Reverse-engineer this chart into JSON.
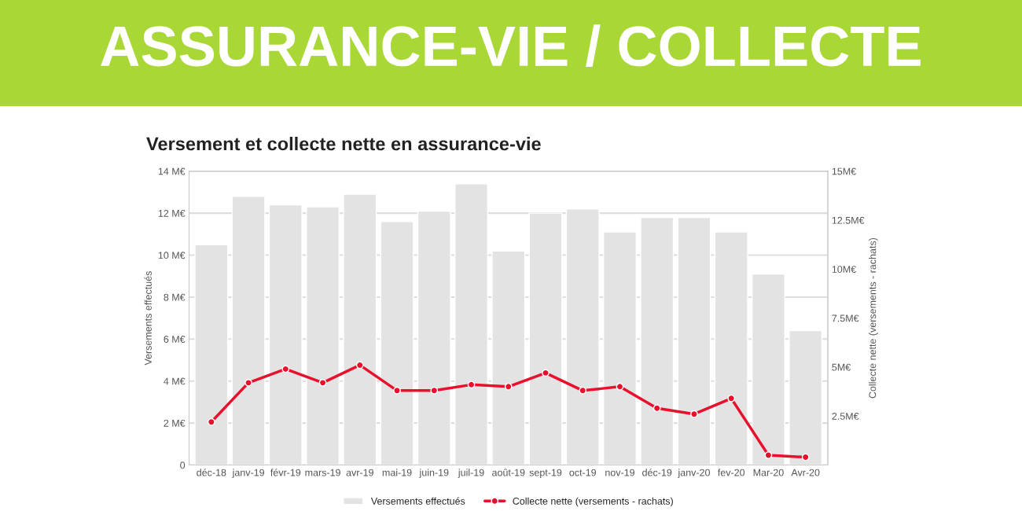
{
  "chart_data": {
    "type": "bar",
    "title": "ASSURANCE-VIE / COLLECTE",
    "subtitle": "Versement et collecte nette en assurance-vie",
    "ylabel": "Versements effectués",
    "y2label": "Collecte nette (versements - rachats)",
    "categories": [
      "déc-18",
      "janv-19",
      "févr-19",
      "mars-19",
      "avr-19",
      "mai-19",
      "juin-19",
      "juil-19",
      "août-19",
      "sept-19",
      "oct-19",
      "nov-19",
      "déc-19",
      "janv-20",
      "fev-20",
      "Mar-20",
      "Avr-20"
    ],
    "series": [
      {
        "name": "Versements effectués",
        "color": "#e3e3e3",
        "values": [
          10.5,
          12.8,
          12.4,
          12.3,
          12.9,
          11.6,
          12.1,
          13.4,
          10.2,
          12.0,
          12.2,
          11.1,
          11.8,
          11.8,
          11.1,
          9.1,
          6.4
        ]
      },
      {
        "name": "Collecte nette (versements - rachats)",
        "type": "line",
        "axis": "y2",
        "color": "#e8112d",
        "marker": "circle",
        "values": [
          2.2,
          4.2,
          4.9,
          4.2,
          5.1,
          3.8,
          3.8,
          4.1,
          4.0,
          4.7,
          3.8,
          4.0,
          2.9,
          2.6,
          3.4,
          0.5,
          0.4
        ]
      }
    ],
    "ylim": [
      0,
      14
    ],
    "yticks": [
      0,
      {
        "value": 2,
        "label": "2 M€"
      },
      {
        "value": 4,
        "label": "4 M€"
      },
      {
        "value": 6,
        "label": "6 M€"
      },
      {
        "value": 8,
        "label": "8 M€"
      },
      {
        "value": 10,
        "label": "10 M€"
      },
      {
        "value": 12,
        "label": "12 M€"
      },
      {
        "value": 14,
        "label": "14 M€"
      }
    ],
    "y2lim": [
      0,
      15
    ],
    "y2ticks": [
      {
        "value": 2.5,
        "label": "2.5M€"
      },
      {
        "value": 5,
        "label": "5M€"
      },
      {
        "value": 7.5,
        "label": "7.5M€"
      },
      {
        "value": 10,
        "label": "10M€"
      },
      {
        "value": 12.5,
        "label": "12.5M€"
      },
      {
        "value": 15,
        "label": "15M€"
      }
    ],
    "grid": "y",
    "legend": "bottom",
    "line_style": "solid"
  }
}
